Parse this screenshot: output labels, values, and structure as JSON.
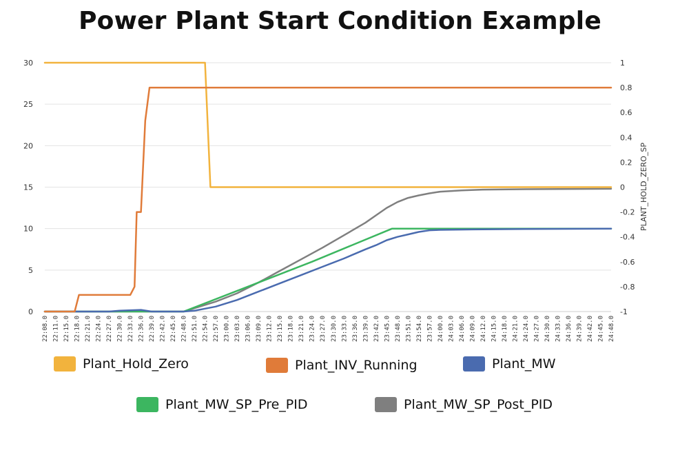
{
  "title": "Power Plant Start Condition Example",
  "colors": {
    "hold_zero": "#F2B33D",
    "inv_running": "#E07B39",
    "mw": "#4A6BAF",
    "mw_sp_pre": "#3CB660",
    "mw_sp_post": "#7F7F7F",
    "grid": "#E3E3E3",
    "axis_text": "#333333"
  },
  "chart_data": {
    "type": "line",
    "title": "Power Plant Start Condition Example",
    "ylabel_left": "",
    "ylabel_right": "PLANT_HOLD_ZERO_SP",
    "ylim_left": [
      0,
      30
    ],
    "ylim_right": [
      -1,
      1
    ],
    "yticks_left": [
      "0",
      "5",
      "10",
      "15",
      "20",
      "25",
      "30"
    ],
    "yticks_right": [
      "-1",
      "-0.8",
      "-0.6",
      "-0.4",
      "-0.2",
      "0",
      "0.2",
      "0.4",
      "0.6",
      "0.8",
      "1"
    ],
    "x_labels": [
      "22:08.0",
      "22:11.0",
      "22:15.0",
      "22:18.0",
      "22:21.0",
      "22:24.0",
      "22:27.0",
      "22:30.0",
      "22:33.0",
      "22:36.0",
      "22:39.0",
      "22:42.0",
      "22:45.0",
      "22:48.0",
      "22:51.0",
      "22:54.0",
      "22:57.0",
      "23:00.0",
      "23:03.0",
      "23:06.0",
      "23:09.0",
      "23:12.0",
      "23:15.0",
      "23:18.0",
      "23:21.0",
      "23:24.0",
      "23:27.0",
      "23:30.0",
      "23:33.0",
      "23:36.0",
      "23:39.0",
      "23:42.0",
      "23:45.0",
      "23:48.0",
      "23:51.0",
      "23:54.0",
      "23:57.0",
      "24:00.0",
      "24:03.0",
      "24:06.0",
      "24:09.0",
      "24:12.0",
      "24:15.0",
      "24:18.0",
      "24:21.0",
      "24:24.0",
      "24:27.0",
      "24:30.0",
      "24:33.0",
      "24:36.0",
      "24:39.0",
      "24:42.0",
      "24:45.0",
      "24:48.0"
    ],
    "grid": true,
    "legend_position": "bottom",
    "series": [
      {
        "name": "Plant_Hold_Zero",
        "axis": "right",
        "color_key": "hold_zero",
        "points": [
          [
            0,
            1
          ],
          [
            15.0,
            1
          ],
          [
            15.5,
            0
          ],
          [
            53,
            0
          ]
        ]
      },
      {
        "name": "Plant_INV_Running",
        "axis": "left",
        "color_key": "inv_running",
        "points": [
          [
            0,
            0
          ],
          [
            2.8,
            0
          ],
          [
            3.2,
            2
          ],
          [
            8.0,
            2
          ],
          [
            8.4,
            3
          ],
          [
            8.6,
            12
          ],
          [
            9.0,
            12
          ],
          [
            9.4,
            23
          ],
          [
            9.8,
            27
          ],
          [
            53,
            27
          ]
        ]
      },
      {
        "name": "Plant_MW",
        "axis": "left",
        "color_key": "mw",
        "points": [
          [
            0,
            0
          ],
          [
            6,
            0
          ],
          [
            7,
            0.1
          ],
          [
            9,
            0.2
          ],
          [
            10,
            0
          ],
          [
            12,
            0
          ],
          [
            13,
            0
          ],
          [
            14,
            0.1
          ],
          [
            16,
            0.6
          ],
          [
            18,
            1.4
          ],
          [
            20,
            2.4
          ],
          [
            22,
            3.4
          ],
          [
            24,
            4.4
          ],
          [
            26,
            5.4
          ],
          [
            28,
            6.4
          ],
          [
            30,
            7.5
          ],
          [
            31,
            8
          ],
          [
            32,
            8.6
          ],
          [
            33,
            9.0
          ],
          [
            34,
            9.3
          ],
          [
            35,
            9.6
          ],
          [
            36,
            9.8
          ],
          [
            37,
            9.85
          ],
          [
            40,
            9.9
          ],
          [
            45,
            9.95
          ],
          [
            53,
            10
          ]
        ]
      },
      {
        "name": "Plant_MW_SP_Pre_PID",
        "axis": "left",
        "color_key": "mw_sp_pre",
        "points": [
          [
            0,
            0
          ],
          [
            13,
            0
          ],
          [
            19,
            3.0
          ],
          [
            25,
            6.0
          ],
          [
            32.5,
            10
          ],
          [
            53,
            10
          ]
        ]
      },
      {
        "name": "Plant_MW_SP_Post_PID",
        "axis": "left",
        "color_key": "mw_sp_post",
        "points": [
          [
            0,
            0
          ],
          [
            13,
            0
          ],
          [
            16,
            1.2
          ],
          [
            18,
            2.2
          ],
          [
            20,
            3.5
          ],
          [
            22,
            4.9
          ],
          [
            24,
            6.3
          ],
          [
            26,
            7.7
          ],
          [
            28,
            9.2
          ],
          [
            30,
            10.7
          ],
          [
            31,
            11.6
          ],
          [
            32,
            12.5
          ],
          [
            33,
            13.2
          ],
          [
            34,
            13.7
          ],
          [
            35,
            14.0
          ],
          [
            36,
            14.25
          ],
          [
            37,
            14.45
          ],
          [
            39,
            14.6
          ],
          [
            41,
            14.7
          ],
          [
            45,
            14.75
          ],
          [
            53,
            14.8
          ]
        ]
      }
    ]
  },
  "legend": {
    "items": [
      {
        "label": "Plant_Hold_Zero",
        "color_key": "hold_zero"
      },
      {
        "label": "Plant_INV_Running",
        "color_key": "inv_running"
      },
      {
        "label": "Plant_MW",
        "color_key": "mw"
      },
      {
        "label": "Plant_MW_SP_Pre_PID",
        "color_key": "mw_sp_pre"
      },
      {
        "label": "Plant_MW_SP_Post_PID",
        "color_key": "mw_sp_post"
      }
    ]
  }
}
